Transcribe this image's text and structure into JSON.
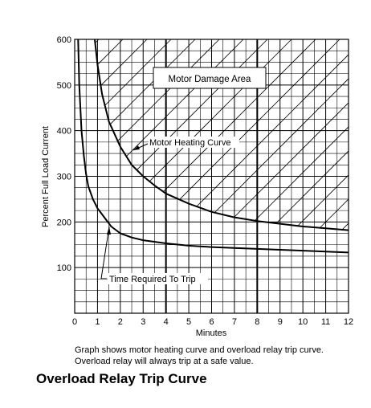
{
  "chart_data": {
    "type": "line",
    "title": "Overload Relay Trip Curve",
    "xlabel": "Minutes",
    "ylabel": "Percent Full Load Current",
    "xlim": [
      0,
      12
    ],
    "ylim": [
      0,
      600
    ],
    "x_ticks": [
      "0",
      "1",
      "2",
      "3",
      "4",
      "5",
      "6",
      "7",
      "8",
      "9",
      "10",
      "11",
      "12"
    ],
    "y_ticks": [
      "100",
      "200",
      "300",
      "400",
      "500",
      "600"
    ],
    "grid": true,
    "series": [
      {
        "name": "Motor Heating Curve",
        "x": [
          0.88,
          1.0,
          1.2,
          1.5,
          2.0,
          2.5,
          3.0,
          3.5,
          4.0,
          5.0,
          6.0,
          7.0,
          8.0,
          9.0,
          10.0,
          11.0,
          12.0
        ],
        "y": [
          600,
          545,
          480,
          420,
          365,
          325,
          300,
          280,
          262,
          240,
          222,
          210,
          202,
          196,
          190,
          186,
          182
        ]
      },
      {
        "name": "Time Required To Trip",
        "x": [
          0.15,
          0.2,
          0.3,
          0.4,
          0.5,
          0.6,
          0.8,
          1.0,
          1.3,
          1.6,
          2.0,
          2.5,
          3.0,
          4.0,
          5.0,
          6.0,
          7.0,
          8.0,
          9.0,
          10.0,
          11.0,
          12.0
        ],
        "y": [
          600,
          500,
          400,
          345,
          305,
          278,
          250,
          230,
          210,
          190,
          175,
          166,
          160,
          153,
          148,
          145,
          143,
          141,
          139,
          137,
          135,
          133
        ]
      }
    ],
    "annotations": {
      "damage_area": "Motor Damage Area",
      "heating_label": "Motor Heating Curve",
      "trip_label": "Time Required To Trip"
    }
  },
  "caption": {
    "line1": "Graph shows motor heating curve and overload relay trip curve.",
    "line2": "Overload relay will always trip at a safe value."
  }
}
